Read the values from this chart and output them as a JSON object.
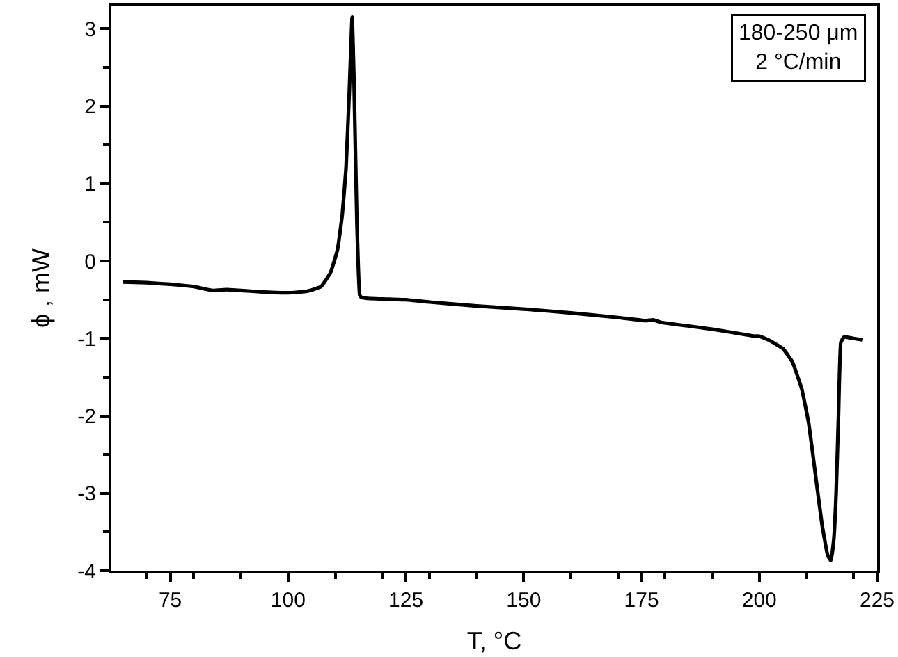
{
  "chart_data": {
    "type": "line",
    "xlabel": "T, °C",
    "ylabel": "ϕ , mW",
    "annotations": [
      "180-250 μm\n2 °C/min"
    ],
    "xlim": [
      62.5,
      225
    ],
    "xticks": [
      75,
      100,
      125,
      150,
      175,
      200,
      225
    ],
    "ylim": [
      -4,
      3.3
    ],
    "yticks": [
      -4,
      -3,
      -2,
      -1,
      0,
      1,
      2,
      3
    ],
    "marker": "none",
    "line_style": "solid",
    "series": [
      {
        "color": "#000000",
        "x": [
          65,
          70,
          75,
          80,
          84,
          87,
          90,
          95,
          100,
          104,
          107,
          109,
          110.5,
          111.5,
          112.3,
          113,
          113.6,
          114,
          114.6,
          115.2,
          115.6,
          116.5,
          120,
          125,
          130,
          140,
          150,
          160,
          170,
          176,
          177.5,
          179,
          185,
          190,
          195,
          199,
          200,
          202,
          205,
          207,
          209,
          210.5,
          212,
          213.3,
          214.5,
          215.2,
          215.8,
          216.3,
          216.8,
          217.3,
          218,
          220,
          222
        ],
        "values": [
          -0.27,
          -0.28,
          -0.3,
          -0.33,
          -0.38,
          -0.37,
          -0.38,
          -0.4,
          -0.41,
          -0.39,
          -0.33,
          -0.15,
          0.15,
          0.6,
          1.2,
          2.2,
          3.15,
          2.3,
          0.5,
          -0.44,
          -0.47,
          -0.48,
          -0.49,
          -0.5,
          -0.53,
          -0.58,
          -0.62,
          -0.67,
          -0.73,
          -0.77,
          -0.76,
          -0.79,
          -0.84,
          -0.88,
          -0.93,
          -0.97,
          -0.97,
          -1.02,
          -1.13,
          -1.3,
          -1.65,
          -2.1,
          -2.8,
          -3.4,
          -3.8,
          -3.87,
          -3.6,
          -3.0,
          -2.0,
          -1.05,
          -0.98,
          -1.0,
          -1.02
        ]
      }
    ]
  }
}
